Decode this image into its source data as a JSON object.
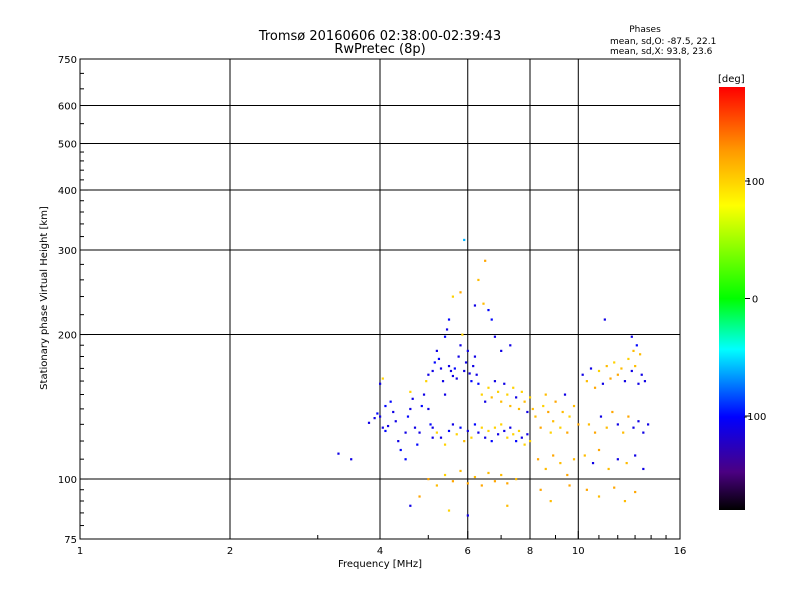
{
  "chart_data": {
    "type": "scatter",
    "title": "Tromsø 20160606 02:38:00-02:39:43",
    "subtitle": "RwPretec (8p)",
    "annotation": {
      "heading": "Phases",
      "lines": [
        "mean, sd,O: -87.5, 22.1",
        "mean, sd,X:  93.8, 23.6"
      ]
    },
    "xlabel": "Frequency [MHz]",
    "ylabel": "Stationary phase Virtual Height [km]",
    "x_scale": "log",
    "y_scale": "log",
    "xlim": [
      1,
      16
    ],
    "ylim": [
      75,
      750
    ],
    "x_ticks": [
      1,
      2,
      4,
      6,
      8,
      10,
      16
    ],
    "x_tick_labels": [
      "1",
      "2",
      "4",
      "6",
      "8",
      "10",
      "16"
    ],
    "x_gridlines": [
      2,
      4,
      6,
      8,
      10
    ],
    "y_ticks": [
      75,
      100,
      200,
      300,
      400,
      500,
      600,
      750
    ],
    "y_tick_labels": [
      "75",
      "100",
      "200",
      "300",
      "400",
      "500",
      "600",
      "750"
    ],
    "y_gridlines": [
      100,
      200,
      300,
      400,
      500,
      600
    ],
    "grid": true,
    "colorbar": {
      "label": "[deg]",
      "range": [
        -180,
        180
      ],
      "ticks": [
        100,
        0,
        -100
      ],
      "tick_labels": [
        "100",
        "0",
        "-100"
      ],
      "colormap": "rainbow (black at -180, purple, blue, cyan, green, yellow, orange, red at 180)"
    },
    "series": [
      {
        "points": [
          [
            3.3,
            113,
            -110
          ],
          [
            3.5,
            110,
            -110
          ],
          [
            3.8,
            131,
            -110
          ],
          [
            3.9,
            134,
            -110
          ],
          [
            3.95,
            137,
            -100
          ],
          [
            4.0,
            135,
            -110
          ],
          [
            4.05,
            128,
            -110
          ],
          [
            4.1,
            126,
            -100
          ],
          [
            4.15,
            129,
            -110
          ],
          [
            4.1,
            142,
            -100
          ],
          [
            4.0,
            158,
            -110
          ],
          [
            4.05,
            162,
            100
          ],
          [
            4.2,
            145,
            -100
          ],
          [
            4.25,
            138,
            -110
          ],
          [
            4.3,
            132,
            -110
          ],
          [
            4.35,
            120,
            -110
          ],
          [
            4.4,
            115,
            -100
          ],
          [
            4.5,
            110,
            -100
          ],
          [
            4.5,
            125,
            -110
          ],
          [
            4.55,
            135,
            -100
          ],
          [
            4.6,
            140,
            -110
          ],
          [
            4.6,
            152,
            100
          ],
          [
            4.65,
            147,
            -110
          ],
          [
            4.7,
            128,
            -110
          ],
          [
            4.75,
            118,
            -100
          ],
          [
            4.8,
            125,
            -110
          ],
          [
            4.85,
            142,
            -100
          ],
          [
            4.9,
            150,
            -110
          ],
          [
            4.95,
            160,
            100
          ],
          [
            5.0,
            165,
            -110
          ],
          [
            5.0,
            140,
            -110
          ],
          [
            5.05,
            130,
            -100
          ],
          [
            5.1,
            122,
            -110
          ],
          [
            5.1,
            168,
            -110
          ],
          [
            5.15,
            175,
            -100
          ],
          [
            5.2,
            185,
            -110
          ],
          [
            5.25,
            178,
            -100
          ],
          [
            5.3,
            170,
            -110
          ],
          [
            5.35,
            160,
            -110
          ],
          [
            5.4,
            150,
            -110
          ],
          [
            5.4,
            198,
            -100
          ],
          [
            5.45,
            205,
            -110
          ],
          [
            5.5,
            215,
            -100
          ],
          [
            5.5,
            172,
            -110
          ],
          [
            5.55,
            168,
            -110
          ],
          [
            5.6,
            164,
            -110
          ],
          [
            5.65,
            170,
            -100
          ],
          [
            5.7,
            162,
            -110
          ],
          [
            5.75,
            180,
            -110
          ],
          [
            5.8,
            190,
            -110
          ],
          [
            5.85,
            200,
            100
          ],
          [
            5.9,
            168,
            -110
          ],
          [
            5.95,
            175,
            -110
          ],
          [
            6.0,
            185,
            -110
          ],
          [
            6.05,
            166,
            -110
          ],
          [
            6.1,
            160,
            -100
          ],
          [
            6.15,
            172,
            -110
          ],
          [
            6.2,
            180,
            -110
          ],
          [
            6.25,
            165,
            -110
          ],
          [
            6.3,
            158,
            -100
          ],
          [
            5.6,
            240,
            100
          ],
          [
            5.8,
            245,
            120
          ],
          [
            5.9,
            315,
            -60
          ],
          [
            6.2,
            230,
            -110
          ],
          [
            6.3,
            260,
            110
          ],
          [
            6.5,
            285,
            120
          ],
          [
            6.45,
            232,
            110
          ],
          [
            6.6,
            225,
            -100
          ],
          [
            6.7,
            215,
            -100
          ],
          [
            6.8,
            198,
            -110
          ],
          [
            7.0,
            185,
            -110
          ],
          [
            7.3,
            190,
            -110
          ],
          [
            5.1,
            128,
            -110
          ],
          [
            5.2,
            125,
            100
          ],
          [
            5.3,
            122,
            -110
          ],
          [
            5.4,
            118,
            100
          ],
          [
            5.5,
            126,
            -100
          ],
          [
            5.6,
            130,
            -110
          ],
          [
            5.7,
            124,
            100
          ],
          [
            5.8,
            128,
            -100
          ],
          [
            5.9,
            120,
            110
          ],
          [
            6.0,
            126,
            -110
          ],
          [
            6.1,
            122,
            100
          ],
          [
            6.2,
            130,
            -100
          ],
          [
            6.3,
            125,
            -110
          ],
          [
            6.4,
            128,
            100
          ],
          [
            6.5,
            122,
            -110
          ],
          [
            6.6,
            126,
            100
          ],
          [
            6.7,
            120,
            -100
          ],
          [
            6.8,
            128,
            100
          ],
          [
            6.9,
            124,
            -110
          ],
          [
            7.0,
            130,
            100
          ],
          [
            7.1,
            126,
            -110
          ],
          [
            7.2,
            122,
            100
          ],
          [
            7.3,
            128,
            -110
          ],
          [
            7.4,
            124,
            100
          ],
          [
            7.5,
            120,
            -100
          ],
          [
            7.6,
            126,
            100
          ],
          [
            7.7,
            122,
            -110
          ],
          [
            7.8,
            118,
            100
          ],
          [
            7.9,
            124,
            -110
          ],
          [
            8.0,
            120,
            100
          ],
          [
            6.4,
            150,
            100
          ],
          [
            6.5,
            145,
            -110
          ],
          [
            6.6,
            155,
            100
          ],
          [
            6.7,
            148,
            110
          ],
          [
            6.8,
            160,
            -110
          ],
          [
            6.9,
            152,
            100
          ],
          [
            7.0,
            145,
            110
          ],
          [
            7.1,
            158,
            -110
          ],
          [
            7.2,
            150,
            100
          ],
          [
            7.3,
            142,
            110
          ],
          [
            7.4,
            155,
            100
          ],
          [
            7.5,
            148,
            -110
          ],
          [
            7.6,
            140,
            110
          ],
          [
            7.7,
            152,
            100
          ],
          [
            7.8,
            145,
            110
          ],
          [
            7.9,
            138,
            -110
          ],
          [
            8.0,
            148,
            100
          ],
          [
            8.1,
            140,
            110
          ],
          [
            5.0,
            100,
            120
          ],
          [
            5.2,
            97,
            110
          ],
          [
            5.4,
            102,
            100
          ],
          [
            5.6,
            99,
            120
          ],
          [
            5.8,
            104,
            110
          ],
          [
            6.0,
            98,
            120
          ],
          [
            6.2,
            101,
            110
          ],
          [
            6.4,
            97,
            120
          ],
          [
            6.6,
            103,
            110
          ],
          [
            6.8,
            99,
            120
          ],
          [
            7.0,
            102,
            110
          ],
          [
            7.2,
            98,
            120
          ],
          [
            7.5,
            100,
            110
          ],
          [
            4.6,
            88,
            -110
          ],
          [
            4.8,
            92,
            120
          ],
          [
            5.5,
            86,
            100
          ],
          [
            6.0,
            84,
            -110
          ],
          [
            7.2,
            88,
            110
          ],
          [
            8.2,
            135,
            110
          ],
          [
            8.4,
            128,
            120
          ],
          [
            8.5,
            142,
            100
          ],
          [
            8.6,
            150,
            110
          ],
          [
            8.7,
            138,
            120
          ],
          [
            8.8,
            125,
            100
          ],
          [
            8.9,
            132,
            110
          ],
          [
            9.0,
            145,
            120
          ],
          [
            9.2,
            128,
            100
          ],
          [
            9.3,
            138,
            110
          ],
          [
            9.4,
            150,
            -110
          ],
          [
            9.5,
            125,
            120
          ],
          [
            9.6,
            135,
            100
          ],
          [
            9.8,
            142,
            110
          ],
          [
            10.0,
            130,
            120
          ],
          [
            8.3,
            110,
            120
          ],
          [
            8.6,
            105,
            110
          ],
          [
            8.9,
            112,
            120
          ],
          [
            9.2,
            108,
            110
          ],
          [
            9.5,
            102,
            120
          ],
          [
            9.8,
            110,
            110
          ],
          [
            8.4,
            95,
            120
          ],
          [
            8.8,
            90,
            110
          ],
          [
            9.6,
            97,
            120
          ],
          [
            10.2,
            165,
            -110
          ],
          [
            10.4,
            160,
            110
          ],
          [
            10.6,
            170,
            -110
          ],
          [
            10.8,
            155,
            120
          ],
          [
            11.0,
            168,
            100
          ],
          [
            11.2,
            158,
            -110
          ],
          [
            11.4,
            172,
            110
          ],
          [
            11.6,
            162,
            120
          ],
          [
            11.8,
            175,
            100
          ],
          [
            12.0,
            165,
            120
          ],
          [
            12.2,
            170,
            110
          ],
          [
            12.4,
            160,
            -110
          ],
          [
            12.6,
            178,
            100
          ],
          [
            12.8,
            168,
            -110
          ],
          [
            13.0,
            172,
            110
          ],
          [
            13.2,
            158,
            -110
          ],
          [
            13.4,
            165,
            -110
          ],
          [
            13.6,
            160,
            -110
          ],
          [
            10.5,
            130,
            110
          ],
          [
            10.8,
            125,
            120
          ],
          [
            11.1,
            135,
            -110
          ],
          [
            11.4,
            128,
            110
          ],
          [
            11.7,
            138,
            120
          ],
          [
            12.0,
            130,
            -110
          ],
          [
            12.3,
            125,
            110
          ],
          [
            12.6,
            135,
            120
          ],
          [
            12.9,
            128,
            -110
          ],
          [
            13.2,
            132,
            -110
          ],
          [
            13.5,
            125,
            -110
          ],
          [
            13.8,
            130,
            -110
          ],
          [
            10.3,
            112,
            110
          ],
          [
            10.7,
            108,
            -110
          ],
          [
            11.0,
            115,
            120
          ],
          [
            11.5,
            105,
            110
          ],
          [
            12.0,
            110,
            -110
          ],
          [
            12.5,
            108,
            110
          ],
          [
            13.0,
            112,
            -110
          ],
          [
            13.5,
            105,
            -110
          ],
          [
            10.4,
            95,
            120
          ],
          [
            11.0,
            92,
            110
          ],
          [
            11.8,
            96,
            120
          ],
          [
            12.4,
            90,
            110
          ],
          [
            13.0,
            94,
            120
          ],
          [
            11.3,
            215,
            -110
          ],
          [
            12.8,
            198,
            -110
          ],
          [
            13.1,
            190,
            -100
          ],
          [
            12.9,
            185,
            110
          ],
          [
            13.3,
            182,
            110
          ]
        ]
      }
    ]
  }
}
